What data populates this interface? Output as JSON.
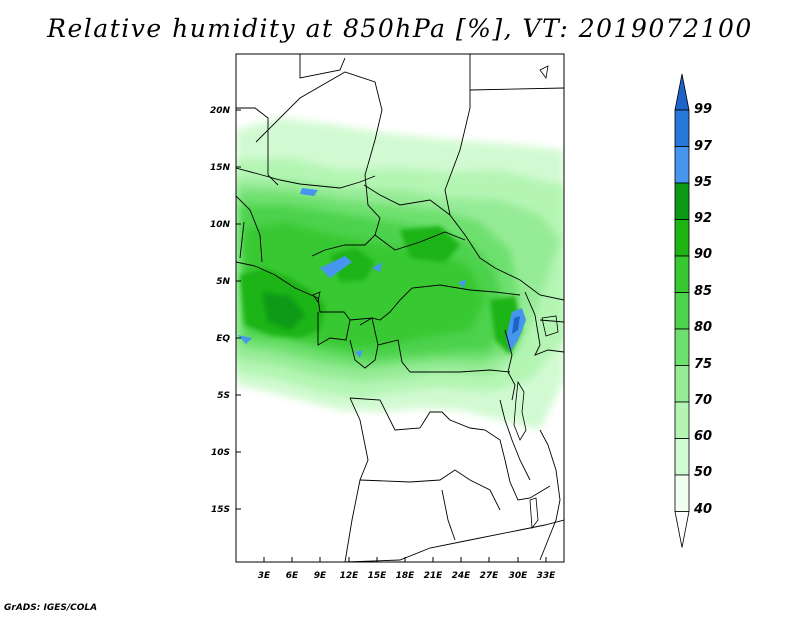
{
  "title": "Relative humidity at 850hPa [%], VT: 2019072100",
  "footer": "GrADS: IGES/COLA",
  "map": {
    "lat_labels": [
      "20N",
      "15N",
      "10N",
      "5N",
      "EQ",
      "5S",
      "10S",
      "15S"
    ],
    "lon_labels": [
      "3E",
      "6E",
      "9E",
      "12E",
      "15E",
      "18E",
      "21E",
      "24E",
      "27E",
      "30E",
      "33E"
    ]
  },
  "colorbar": {
    "levels": [
      "99",
      "97",
      "95",
      "92",
      "90",
      "85",
      "80",
      "75",
      "70",
      "60",
      "50",
      "40"
    ],
    "colors": [
      "#1e64c8",
      "#2878dc",
      "#4696f0",
      "#0a9a14",
      "#1eb414",
      "#37c832",
      "#4ed24e",
      "#6ee06e",
      "#96eb96",
      "#b4f5b4",
      "#d2fad2",
      "#f0fff0"
    ]
  }
}
